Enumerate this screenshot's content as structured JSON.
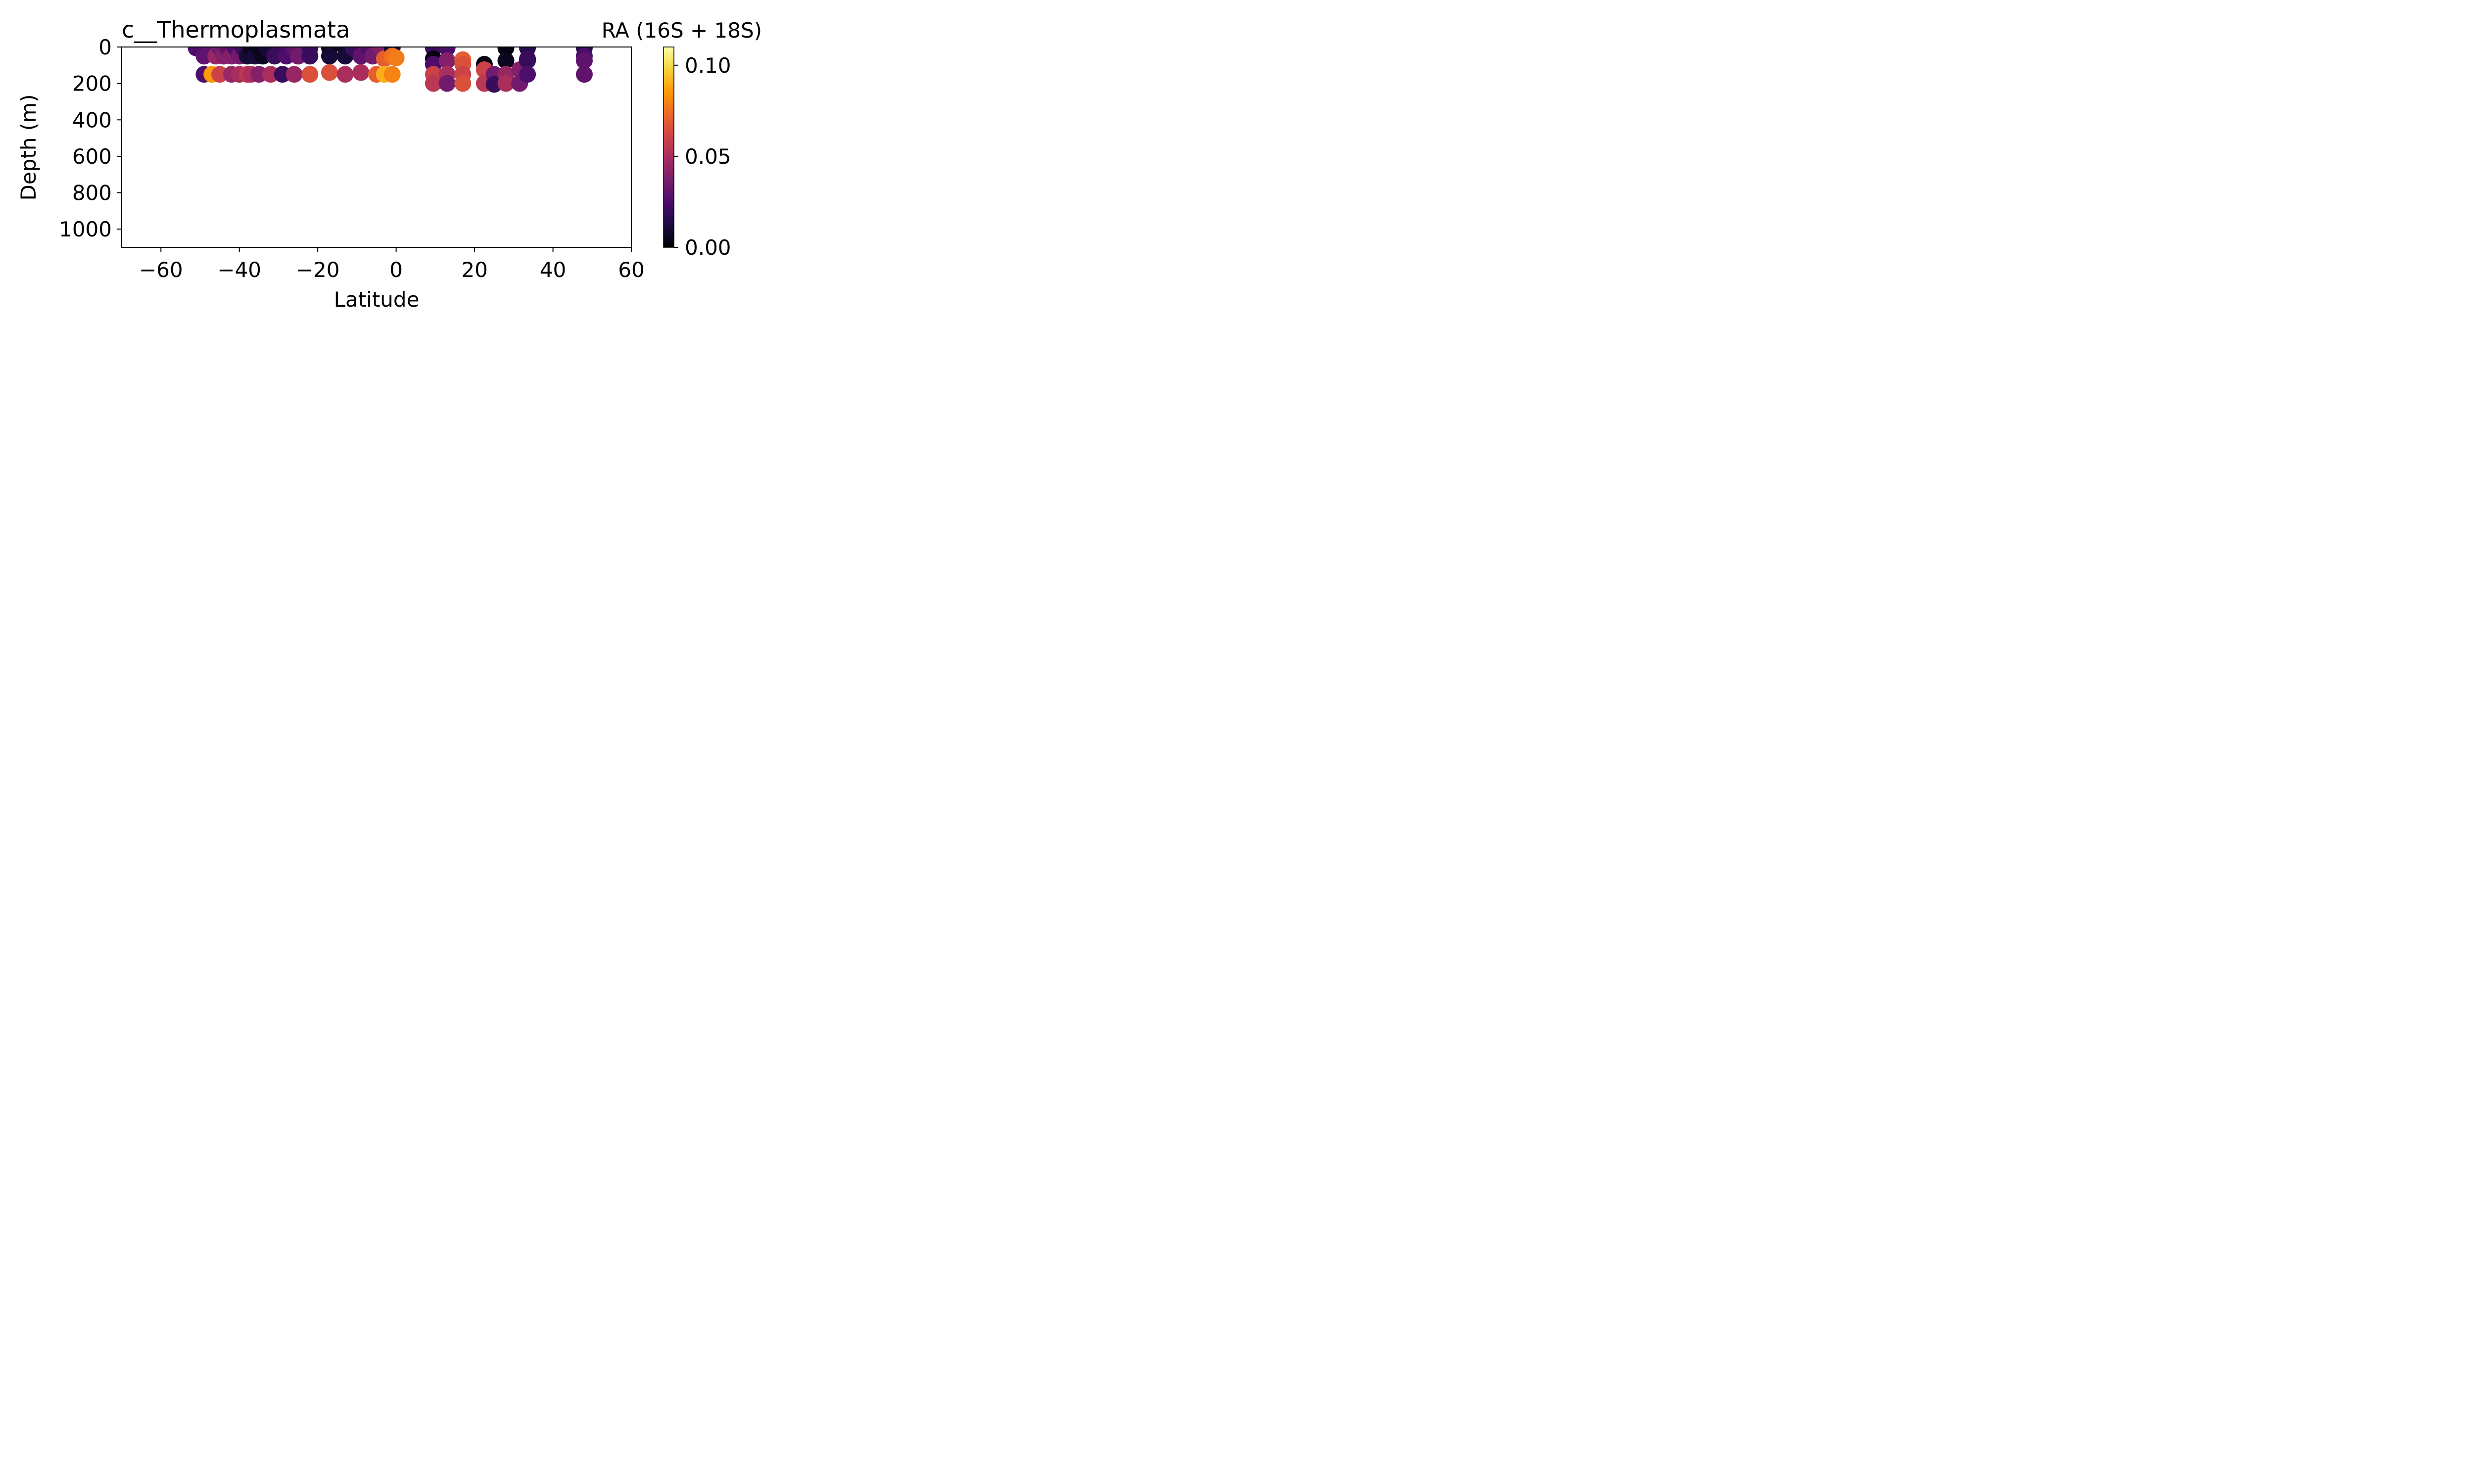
{
  "chart_data": {
    "type": "scatter",
    "title": "c__Thermoplasmata",
    "xlabel": "Latitude",
    "ylabel": "Depth (m)",
    "xlim": [
      -70,
      60
    ],
    "ylim": [
      1100,
      0
    ],
    "y_inverted": true,
    "xticks": [
      -60,
      -40,
      -20,
      0,
      20,
      40,
      60
    ],
    "xtick_labels": [
      "−60",
      "−40",
      "−20",
      "0",
      "20",
      "40",
      "60"
    ],
    "yticks": [
      0,
      200,
      400,
      600,
      800,
      1000
    ],
    "ytick_labels": [
      "0",
      "200",
      "400",
      "600",
      "800",
      "1000"
    ],
    "grid": false,
    "colorbar": {
      "label": "RA (16S + 18S)",
      "colormap": "inferno",
      "range": [
        0.0,
        0.11
      ],
      "ticks": [
        0.0,
        0.05,
        0.1
      ],
      "tick_labels": [
        "0.00",
        "0.05",
        "0.10"
      ],
      "stops": [
        "#000004",
        "#1b0c41",
        "#4a0c6b",
        "#781c6d",
        "#a52c60",
        "#cf4446",
        "#ed6925",
        "#fb9b06",
        "#f7d13d",
        "#fcffa4"
      ]
    },
    "points": [
      {
        "x": -51,
        "y": 5,
        "v": 0.025
      },
      {
        "x": -49,
        "y": 50,
        "v": 0.03
      },
      {
        "x": -49,
        "y": 150,
        "v": 0.025
      },
      {
        "x": -47,
        "y": 5,
        "v": 0.03
      },
      {
        "x": -47,
        "y": 150,
        "v": 0.085
      },
      {
        "x": -46,
        "y": 50,
        "v": 0.045
      },
      {
        "x": -45,
        "y": 5,
        "v": 0.035
      },
      {
        "x": -45,
        "y": 150,
        "v": 0.06
      },
      {
        "x": -44,
        "y": 50,
        "v": 0.04
      },
      {
        "x": -43,
        "y": 5,
        "v": 0.03
      },
      {
        "x": -42,
        "y": 50,
        "v": 0.04
      },
      {
        "x": -42,
        "y": 150,
        "v": 0.045
      },
      {
        "x": -41,
        "y": 5,
        "v": 0.025
      },
      {
        "x": -40,
        "y": 50,
        "v": 0.035
      },
      {
        "x": -40,
        "y": 150,
        "v": 0.05
      },
      {
        "x": -39,
        "y": 5,
        "v": 0.02
      },
      {
        "x": -38,
        "y": 50,
        "v": 0.01
      },
      {
        "x": -38,
        "y": 150,
        "v": 0.055
      },
      {
        "x": -37,
        "y": 5,
        "v": 0.005
      },
      {
        "x": -37,
        "y": 150,
        "v": 0.05
      },
      {
        "x": -36,
        "y": 50,
        "v": 0.01
      },
      {
        "x": -35,
        "y": 5,
        "v": 0.005
      },
      {
        "x": -35,
        "y": 150,
        "v": 0.04
      },
      {
        "x": -34,
        "y": 50,
        "v": 0.005
      },
      {
        "x": -33,
        "y": 5,
        "v": 0.01
      },
      {
        "x": -32,
        "y": 150,
        "v": 0.05
      },
      {
        "x": -31,
        "y": 50,
        "v": 0.02
      },
      {
        "x": -29,
        "y": 5,
        "v": 0.02
      },
      {
        "x": -29,
        "y": 150,
        "v": 0.02
      },
      {
        "x": -28,
        "y": 50,
        "v": 0.025
      },
      {
        "x": -26,
        "y": 5,
        "v": 0.03
      },
      {
        "x": -26,
        "y": 150,
        "v": 0.045
      },
      {
        "x": -25,
        "y": 50,
        "v": 0.035
      },
      {
        "x": -22,
        "y": 5,
        "v": 0.02
      },
      {
        "x": -22,
        "y": 50,
        "v": 0.02
      },
      {
        "x": -22,
        "y": 150,
        "v": 0.065
      },
      {
        "x": -17,
        "y": 5,
        "v": 0.005
      },
      {
        "x": -17,
        "y": 50,
        "v": 0.01
      },
      {
        "x": -17,
        "y": 140,
        "v": 0.065
      },
      {
        "x": -13,
        "y": 5,
        "v": 0.005
      },
      {
        "x": -13,
        "y": 50,
        "v": 0.01
      },
      {
        "x": -13,
        "y": 150,
        "v": 0.05
      },
      {
        "x": -11,
        "y": 5,
        "v": 0.02
      },
      {
        "x": -9,
        "y": 50,
        "v": 0.03
      },
      {
        "x": -9,
        "y": 140,
        "v": 0.05
      },
      {
        "x": -7,
        "y": 5,
        "v": 0.025
      },
      {
        "x": -6,
        "y": 50,
        "v": 0.035
      },
      {
        "x": -5,
        "y": 150,
        "v": 0.07
      },
      {
        "x": -4,
        "y": 5,
        "v": 0.04
      },
      {
        "x": -3,
        "y": 65,
        "v": 0.07
      },
      {
        "x": -3,
        "y": 150,
        "v": 0.09
      },
      {
        "x": -1,
        "y": 5,
        "v": 0.01
      },
      {
        "x": -1,
        "y": 50,
        "v": 0.075
      },
      {
        "x": -1,
        "y": 150,
        "v": 0.08
      },
      {
        "x": 0,
        "y": 60,
        "v": 0.078
      },
      {
        "x": 9.5,
        "y": 5,
        "v": 0.02
      },
      {
        "x": 9.5,
        "y": 65,
        "v": 0.003
      },
      {
        "x": 9.5,
        "y": 95,
        "v": 0.025
      },
      {
        "x": 9.5,
        "y": 150,
        "v": 0.06
      },
      {
        "x": 9.5,
        "y": 200,
        "v": 0.055
      },
      {
        "x": 13,
        "y": 5,
        "v": 0.025
      },
      {
        "x": 13,
        "y": 75,
        "v": 0.04
      },
      {
        "x": 13,
        "y": 150,
        "v": 0.05
      },
      {
        "x": 13,
        "y": 200,
        "v": 0.035
      },
      {
        "x": 17,
        "y": 70,
        "v": 0.07
      },
      {
        "x": 17,
        "y": 95,
        "v": 0.065
      },
      {
        "x": 17,
        "y": 150,
        "v": 0.06
      },
      {
        "x": 17,
        "y": 200,
        "v": 0.065
      },
      {
        "x": 22.5,
        "y": 95,
        "v": 0.003
      },
      {
        "x": 22.5,
        "y": 125,
        "v": 0.06
      },
      {
        "x": 22.5,
        "y": 200,
        "v": 0.055
      },
      {
        "x": 25,
        "y": 150,
        "v": 0.035
      },
      {
        "x": 25,
        "y": 205,
        "v": 0.02
      },
      {
        "x": 28,
        "y": 5,
        "v": 0.003
      },
      {
        "x": 28,
        "y": 75,
        "v": 0.005
      },
      {
        "x": 28,
        "y": 150,
        "v": 0.045
      },
      {
        "x": 28,
        "y": 200,
        "v": 0.05
      },
      {
        "x": 31.5,
        "y": 125,
        "v": 0.04
      },
      {
        "x": 31.5,
        "y": 200,
        "v": 0.035
      },
      {
        "x": 33.5,
        "y": 5,
        "v": 0.015
      },
      {
        "x": 33.5,
        "y": 65,
        "v": 0.02
      },
      {
        "x": 33.5,
        "y": 75,
        "v": 0.02
      },
      {
        "x": 33.5,
        "y": 150,
        "v": 0.025
      },
      {
        "x": 48,
        "y": 5,
        "v": 0.015
      },
      {
        "x": 48,
        "y": 50,
        "v": 0.025
      },
      {
        "x": 48,
        "y": 75,
        "v": 0.03
      },
      {
        "x": 48,
        "y": 150,
        "v": 0.03
      }
    ]
  }
}
